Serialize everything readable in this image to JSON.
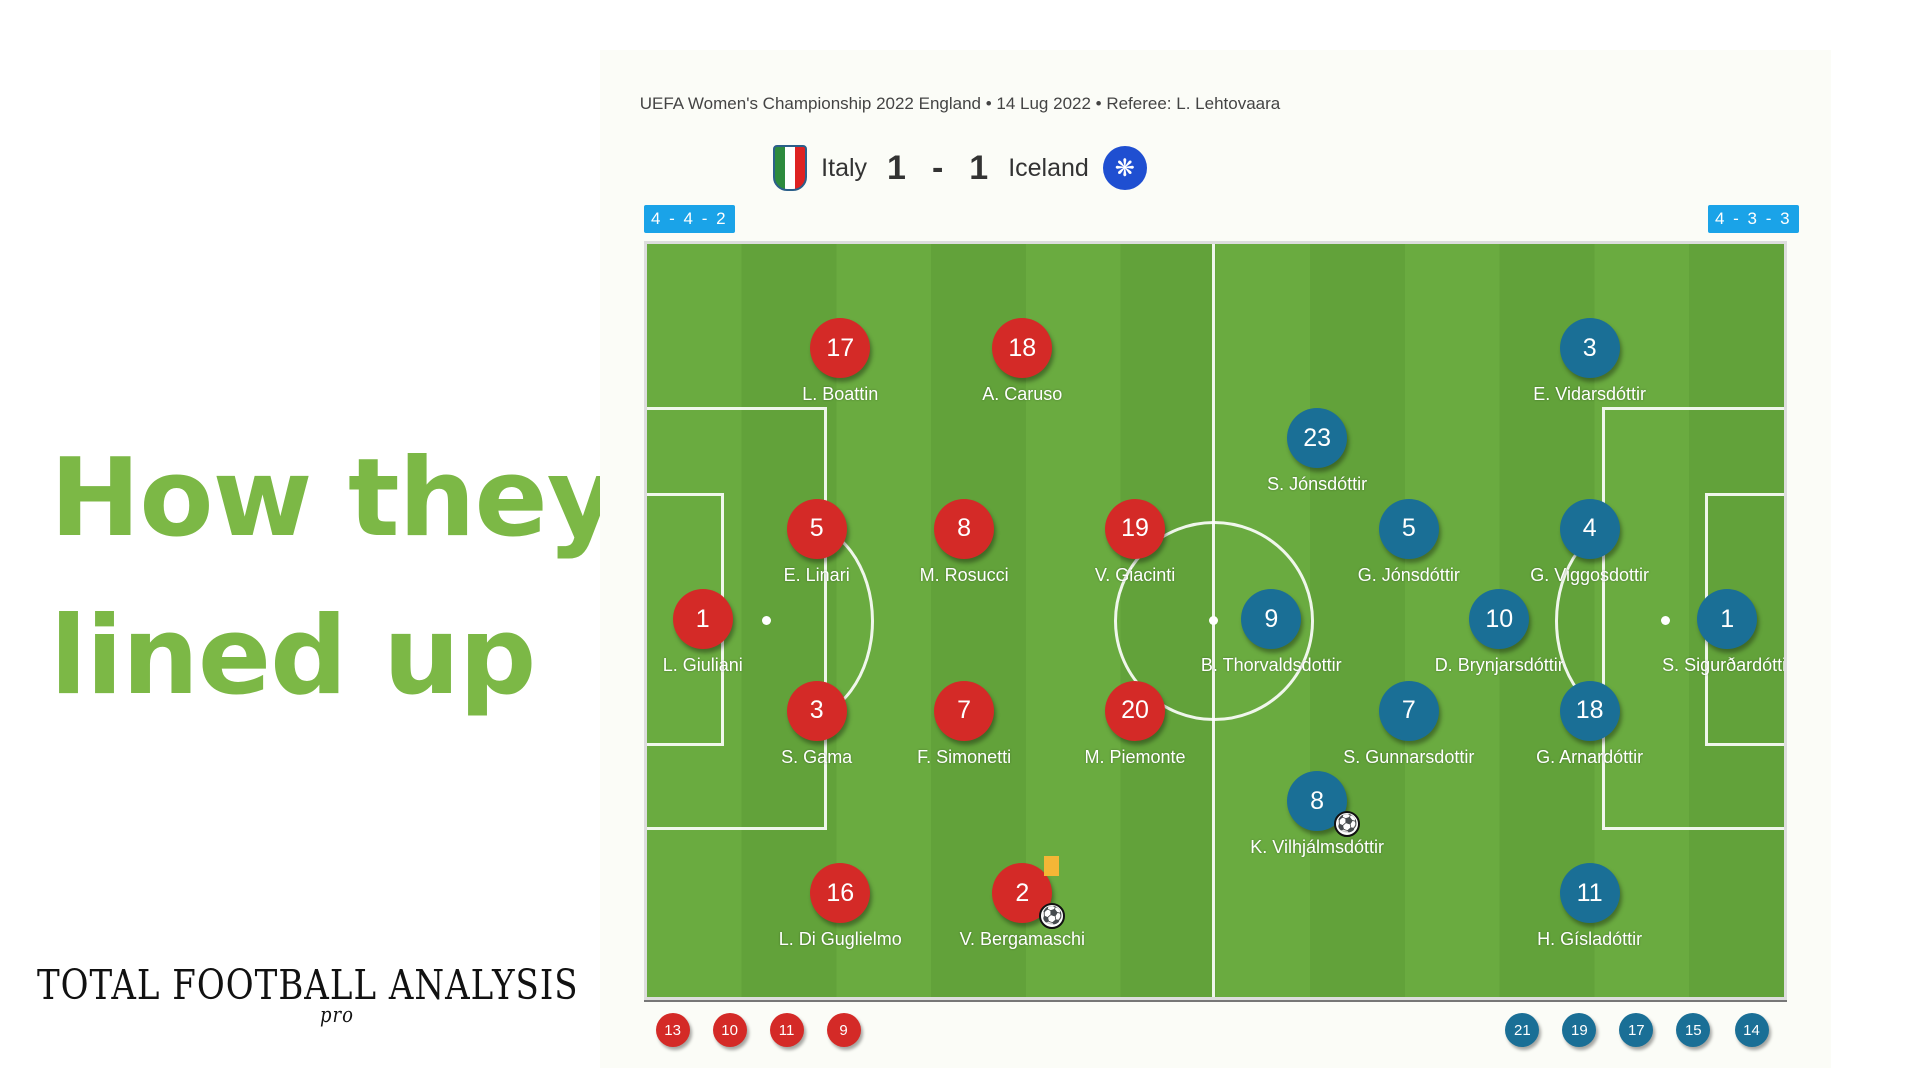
{
  "headline": {
    "line1": "How they",
    "line2": "lined up"
  },
  "logo": {
    "text": "TOTAL FOOTBALL ANALYSIS",
    "suffix": "pro"
  },
  "match": {
    "meta": "UEFA Women's Championship 2022 England • 14 Lug 2022 • Referee: L. Lehtovaara",
    "home_team": "Italy",
    "away_team": "Iceland",
    "home_score": "1",
    "away_score": "1",
    "separator": "-",
    "home_formation": "4 - 4 - 2",
    "away_formation": "4 - 3 - 3"
  },
  "colors": {
    "home": "#d42a27",
    "away": "#1a6f96",
    "headline": "#7cb846",
    "formation_badge": "#1aa3e8",
    "yellow_card": "#f4b636"
  },
  "home_players": [
    {
      "number": "1",
      "name": "L. Giuliani"
    },
    {
      "number": "5",
      "name": "E. Linari"
    },
    {
      "number": "3",
      "name": "S. Gama"
    },
    {
      "number": "17",
      "name": "L. Boattin"
    },
    {
      "number": "16",
      "name": "L. Di Guglielmo"
    },
    {
      "number": "8",
      "name": "M. Rosucci"
    },
    {
      "number": "7",
      "name": "F. Simonetti"
    },
    {
      "number": "18",
      "name": "A. Caruso"
    },
    {
      "number": "2",
      "name": "V. Bergamaschi",
      "events": [
        "yellow-card",
        "goal"
      ]
    },
    {
      "number": "19",
      "name": "V. Giacinti"
    },
    {
      "number": "20",
      "name": "M. Piemonte"
    }
  ],
  "away_players": [
    {
      "number": "1",
      "name": "S. Sigurðardóttir"
    },
    {
      "number": "3",
      "name": "E. Vidarsdóttir"
    },
    {
      "number": "4",
      "name": "G. Viggosdottir"
    },
    {
      "number": "18",
      "name": "G. Arnardóttir"
    },
    {
      "number": "11",
      "name": "H. Gísladóttir"
    },
    {
      "number": "10",
      "name": "D. Brynjarsdóttir"
    },
    {
      "number": "5",
      "name": "G. Jónsdóttir"
    },
    {
      "number": "7",
      "name": "S. Gunnarsdottir"
    },
    {
      "number": "23",
      "name": "S. Jónsdóttir"
    },
    {
      "number": "8",
      "name": "K. Vilhjálmsdóttir",
      "events": [
        "goal"
      ]
    },
    {
      "number": "9",
      "name": "B. Thorvaldsdottir"
    }
  ],
  "home_subs": [
    "13",
    "10",
    "11",
    "9"
  ],
  "away_subs": [
    "21",
    "19",
    "17",
    "15",
    "14"
  ]
}
